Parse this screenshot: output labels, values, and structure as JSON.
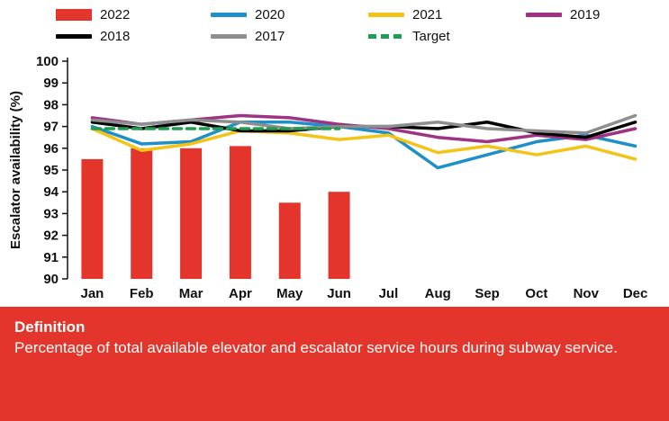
{
  "chart_data": {
    "type": "combo",
    "title": "",
    "ylabel": "Escalator availability (%)",
    "xlabel": "",
    "ylim": [
      90,
      100
    ],
    "yticks": [
      90,
      91,
      92,
      93,
      94,
      95,
      96,
      97,
      98,
      99,
      100
    ],
    "categories": [
      "Jan",
      "Feb",
      "Mar",
      "Apr",
      "May",
      "Jun",
      "Jul",
      "Aug",
      "Sep",
      "Oct",
      "Nov",
      "Dec"
    ],
    "grid": false,
    "legend_position": "top",
    "legend_rows": [
      [
        "2022",
        "2020",
        "2021",
        "2019"
      ],
      [
        "2018",
        "2017",
        "Target"
      ]
    ],
    "series": [
      {
        "name": "2022",
        "type": "bar",
        "color": "#e3352b",
        "values": [
          95.5,
          96.0,
          96.0,
          96.1,
          93.5,
          94.0,
          null,
          null,
          null,
          null,
          null,
          null
        ]
      },
      {
        "name": "2020",
        "type": "line",
        "color": "#1e8fc7",
        "values": [
          97.0,
          96.2,
          96.3,
          97.2,
          97.2,
          97.0,
          96.7,
          95.1,
          95.7,
          96.3,
          96.6,
          96.1
        ]
      },
      {
        "name": "2021",
        "type": "line",
        "color": "#f3c317",
        "values": [
          96.9,
          95.9,
          96.2,
          96.8,
          96.7,
          96.4,
          96.6,
          95.8,
          96.1,
          95.7,
          96.1,
          95.5
        ]
      },
      {
        "name": "2019",
        "type": "line",
        "color": "#9e3383",
        "values": [
          97.4,
          97.1,
          97.3,
          97.5,
          97.4,
          97.1,
          96.9,
          96.5,
          96.3,
          96.6,
          96.4,
          96.9
        ]
      },
      {
        "name": "2018",
        "type": "line",
        "color": "#000000",
        "values": [
          97.2,
          96.9,
          97.2,
          96.8,
          96.8,
          97.0,
          97.0,
          96.9,
          97.2,
          96.7,
          96.5,
          97.2
        ]
      },
      {
        "name": "2017",
        "type": "line",
        "color": "#8e8e8e",
        "values": [
          97.3,
          97.1,
          97.3,
          97.2,
          96.9,
          97.0,
          97.0,
          97.2,
          96.9,
          96.8,
          96.7,
          97.5
        ]
      },
      {
        "name": "Target",
        "type": "line",
        "dashed": true,
        "color": "#1e9e50",
        "values": [
          96.9,
          96.9,
          96.9,
          96.9,
          96.9,
          96.9
        ]
      }
    ]
  },
  "definition": {
    "title": "Definition",
    "body": "Percentage of total available elevator and escalator service hours during subway service.",
    "background_color": "#e3352b"
  }
}
